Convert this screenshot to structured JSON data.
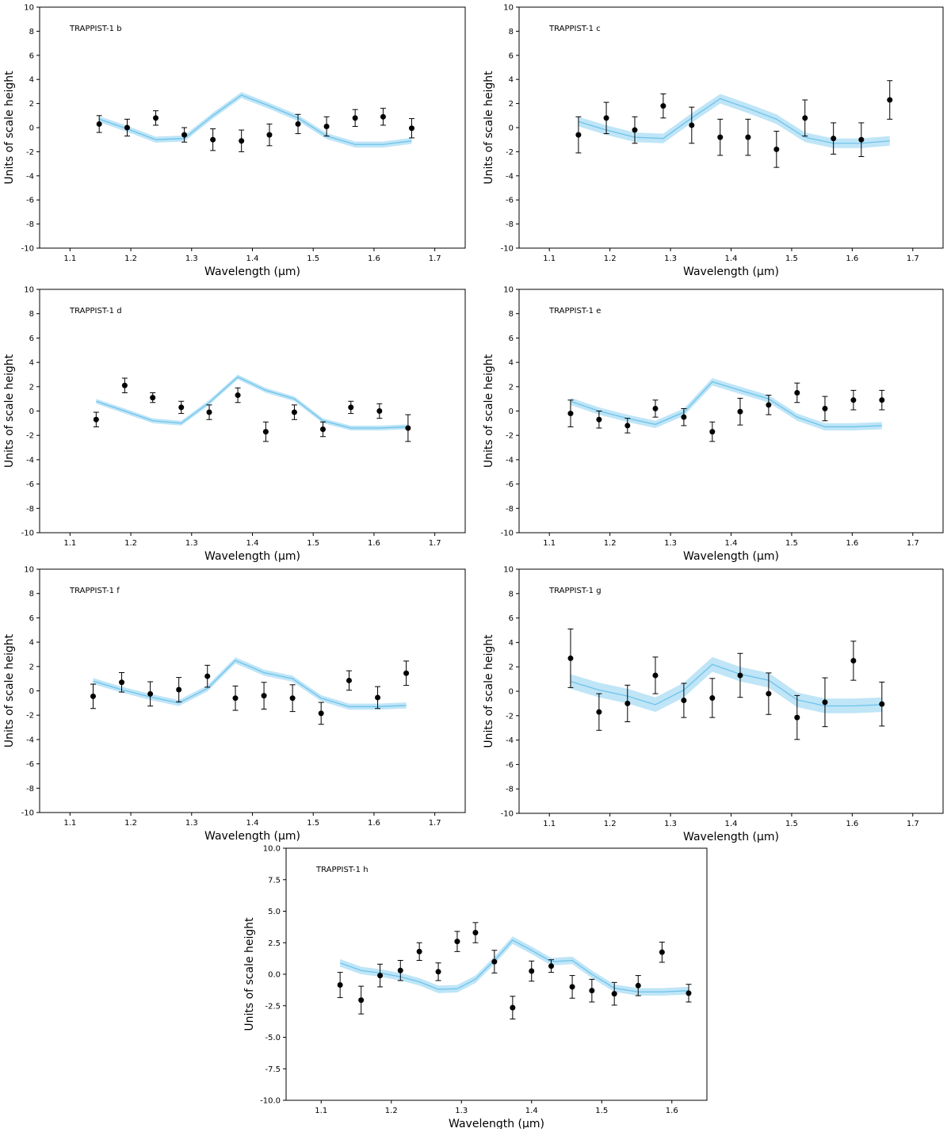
{
  "chart_data": [
    {
      "type": "errorbar",
      "title": "TRAPPIST-1 b",
      "xlabel": "Wavelength (µm)",
      "ylabel": "Units of scale height",
      "xlim": [
        1.05,
        1.75
      ],
      "ylim": [
        -10,
        10
      ],
      "xticks": [
        1.1,
        1.2,
        1.3,
        1.4,
        1.5,
        1.6,
        1.7
      ],
      "yticks": [
        -10,
        -8,
        -6,
        -4,
        -2,
        0,
        2,
        4,
        6,
        8,
        10
      ],
      "color": "#000000",
      "model_color": "#6ec3ea",
      "band_color": "#bfe5f7",
      "x": [
        1.148,
        1.194,
        1.241,
        1.288,
        1.335,
        1.382,
        1.428,
        1.475,
        1.522,
        1.569,
        1.615,
        1.662
      ],
      "values": [
        0.3,
        0.0,
        0.8,
        -0.6,
        -1.0,
        -1.1,
        -0.6,
        0.3,
        0.1,
        0.8,
        0.9,
        -0.05
      ],
      "errors": [
        0.7,
        0.7,
        0.6,
        0.6,
        0.9,
        0.9,
        0.9,
        0.8,
        0.8,
        0.7,
        0.7,
        0.8
      ],
      "model": [
        0.7,
        -0.1,
        -1.0,
        -0.9,
        1.0,
        2.7,
        1.8,
        0.8,
        -0.7,
        -1.4,
        -1.4,
        -1.1
      ],
      "model_band": 0.25
    },
    {
      "type": "errorbar",
      "title": "TRAPPIST-1 c",
      "xlabel": "Wavelength (µm)",
      "ylabel": "Units of scale height",
      "xlim": [
        1.05,
        1.75
      ],
      "ylim": [
        -10,
        10
      ],
      "xticks": [
        1.1,
        1.2,
        1.3,
        1.4,
        1.5,
        1.6,
        1.7
      ],
      "yticks": [
        -10,
        -8,
        -6,
        -4,
        -2,
        0,
        2,
        4,
        6,
        8,
        10
      ],
      "color": "#000000",
      "model_color": "#6ec3ea",
      "band_color": "#bfe5f7",
      "x": [
        1.148,
        1.194,
        1.241,
        1.288,
        1.335,
        1.382,
        1.428,
        1.475,
        1.522,
        1.569,
        1.615,
        1.662
      ],
      "values": [
        -0.6,
        0.8,
        -0.2,
        1.8,
        0.2,
        -0.8,
        -0.8,
        -1.8,
        0.8,
        -0.9,
        -1.0,
        2.3
      ],
      "errors": [
        1.5,
        1.3,
        1.1,
        1.0,
        1.5,
        1.5,
        1.5,
        1.5,
        1.5,
        1.3,
        1.4,
        1.6
      ],
      "model": [
        0.5,
        -0.2,
        -0.8,
        -0.9,
        0.8,
        2.4,
        1.6,
        0.7,
        -0.8,
        -1.3,
        -1.3,
        -1.1
      ],
      "model_band": 0.4
    },
    {
      "type": "errorbar",
      "title": "TRAPPIST-1 d",
      "xlabel": "Wavelength (µm)",
      "ylabel": "Units of scale height",
      "xlim": [
        1.05,
        1.75
      ],
      "ylim": [
        -10,
        10
      ],
      "xticks": [
        1.1,
        1.2,
        1.3,
        1.4,
        1.5,
        1.6,
        1.7
      ],
      "yticks": [
        -10,
        -8,
        -6,
        -4,
        -2,
        0,
        2,
        4,
        6,
        8,
        10
      ],
      "color": "#000000",
      "model_color": "#6ec3ea",
      "band_color": "#bfe5f7",
      "x": [
        1.143,
        1.19,
        1.236,
        1.283,
        1.329,
        1.376,
        1.422,
        1.469,
        1.516,
        1.562,
        1.609,
        1.656
      ],
      "values": [
        -0.7,
        2.1,
        1.1,
        0.3,
        -0.1,
        1.3,
        -1.7,
        -0.1,
        -1.5,
        0.3,
        0.0,
        -1.4
      ],
      "errors": [
        0.6,
        0.6,
        0.4,
        0.5,
        0.6,
        0.6,
        0.8,
        0.6,
        0.6,
        0.5,
        0.6,
        1.1
      ],
      "model": [
        0.8,
        0.0,
        -0.8,
        -1.0,
        0.7,
        2.8,
        1.7,
        1.0,
        -0.8,
        -1.4,
        -1.4,
        -1.3
      ],
      "model_band": 0.2
    },
    {
      "type": "errorbar",
      "title": "TRAPPIST-1 e",
      "xlabel": "Wavelength (µm)",
      "ylabel": "Units of scale height",
      "xlim": [
        1.05,
        1.75
      ],
      "ylim": [
        -10,
        10
      ],
      "xticks": [
        1.1,
        1.2,
        1.3,
        1.4,
        1.5,
        1.6,
        1.7
      ],
      "yticks": [
        -10,
        -8,
        -6,
        -4,
        -2,
        0,
        2,
        4,
        6,
        8,
        10
      ],
      "color": "#000000",
      "model_color": "#6ec3ea",
      "band_color": "#bfe5f7",
      "x": [
        1.135,
        1.182,
        1.229,
        1.275,
        1.322,
        1.369,
        1.415,
        1.462,
        1.509,
        1.555,
        1.602,
        1.649
      ],
      "values": [
        -0.2,
        -0.7,
        -1.2,
        0.2,
        -0.5,
        -1.7,
        -0.05,
        0.5,
        1.5,
        0.2,
        0.9,
        0.9
      ],
      "errors": [
        1.1,
        0.7,
        0.6,
        0.7,
        0.7,
        0.8,
        1.1,
        0.8,
        0.8,
        1.0,
        0.8,
        0.8
      ],
      "model": [
        0.8,
        0.0,
        -0.6,
        -1.1,
        -0.1,
        2.4,
        1.7,
        1.0,
        -0.5,
        -1.3,
        -1.3,
        -1.2
      ],
      "model_band": 0.3
    },
    {
      "type": "errorbar",
      "title": "TRAPPIST-1 f",
      "xlabel": "Wavelength (µm)",
      "ylabel": "Units of scale height",
      "xlim": [
        1.05,
        1.75
      ],
      "ylim": [
        -10,
        10
      ],
      "xticks": [
        1.1,
        1.2,
        1.3,
        1.4,
        1.5,
        1.6,
        1.7
      ],
      "yticks": [
        -10,
        -8,
        -6,
        -4,
        -2,
        0,
        2,
        4,
        6,
        8,
        10
      ],
      "color": "#000000",
      "model_color": "#6ec3ea",
      "band_color": "#bfe5f7",
      "x": [
        1.138,
        1.185,
        1.232,
        1.279,
        1.326,
        1.372,
        1.419,
        1.466,
        1.513,
        1.559,
        1.606,
        1.653
      ],
      "values": [
        -0.45,
        0.7,
        -0.25,
        0.1,
        1.2,
        -0.6,
        -0.4,
        -0.6,
        -1.85,
        0.85,
        -0.55,
        1.45
      ],
      "errors": [
        1.0,
        0.8,
        1.0,
        1.0,
        0.9,
        1.0,
        1.1,
        1.1,
        0.9,
        0.8,
        0.9,
        1.0
      ],
      "model": [
        0.8,
        0.1,
        -0.5,
        -1.0,
        0.2,
        2.5,
        1.5,
        1.0,
        -0.6,
        -1.3,
        -1.3,
        -1.2
      ],
      "model_band": 0.25
    },
    {
      "type": "errorbar",
      "title": "TRAPPIST-1 g",
      "xlabel": "Wavelength (µm)",
      "ylabel": "Units of scale height",
      "xlim": [
        1.05,
        1.75
      ],
      "ylim": [
        -10,
        10
      ],
      "xticks": [
        1.1,
        1.2,
        1.3,
        1.4,
        1.5,
        1.6,
        1.7
      ],
      "yticks": [
        -10,
        -8,
        -6,
        -4,
        -2,
        0,
        2,
        4,
        6,
        8,
        10
      ],
      "color": "#000000",
      "model_color": "#6ec3ea",
      "band_color": "#bfe5f7",
      "x": [
        1.135,
        1.182,
        1.229,
        1.275,
        1.322,
        1.369,
        1.415,
        1.462,
        1.509,
        1.555,
        1.602,
        1.649
      ],
      "values": [
        2.7,
        -1.7,
        -1.0,
        1.3,
        -0.75,
        -0.55,
        1.3,
        -0.2,
        -2.15,
        -0.9,
        2.5,
        -1.05
      ],
      "errors": [
        2.4,
        1.5,
        1.5,
        1.5,
        1.4,
        1.6,
        1.8,
        1.7,
        1.8,
        2.0,
        1.6,
        1.8
      ],
      "model": [
        0.8,
        0.1,
        -0.4,
        -1.1,
        0.1,
        2.2,
        1.4,
        0.9,
        -0.7,
        -1.2,
        -1.2,
        -1.1
      ],
      "model_band": 0.6
    },
    {
      "type": "errorbar",
      "title": "TRAPPIST-1 h",
      "xlabel": "Wavelength (µm)",
      "ylabel": "Units of scale height",
      "xlim": [
        1.05,
        1.65
      ],
      "ylim": [
        -10,
        10
      ],
      "xticks": [
        1.1,
        1.2,
        1.3,
        1.4,
        1.5,
        1.6
      ],
      "yticks": [
        {
          "value": -10,
          "label": "-10.0"
        },
        -7.5,
        {
          "value": -5,
          "label": "-5.0"
        },
        -2.5,
        {
          "value": 0,
          "label": "0.0"
        },
        2.5,
        {
          "value": 5,
          "label": "5.0"
        },
        7.5,
        {
          "value": 10,
          "label": "10.0"
        }
      ],
      "color": "#000000",
      "model_color": "#6ec3ea",
      "band_color": "#bfe5f7",
      "x": [
        1.127,
        1.157,
        1.184,
        1.213,
        1.24,
        1.267,
        1.294,
        1.32,
        1.347,
        1.373,
        1.4,
        1.428,
        1.458,
        1.486,
        1.518,
        1.552,
        1.586,
        1.624
      ],
      "values": [
        -0.85,
        -2.05,
        -0.1,
        0.3,
        1.8,
        0.2,
        2.6,
        3.3,
        1.0,
        -2.65,
        0.25,
        0.65,
        -1.0,
        -1.3,
        -1.55,
        -0.9,
        1.75,
        -1.5
      ],
      "errors": [
        1.0,
        1.1,
        0.9,
        0.8,
        0.7,
        0.7,
        0.8,
        0.8,
        0.9,
        0.9,
        0.8,
        0.5,
        0.9,
        0.9,
        0.9,
        0.8,
        0.8,
        0.7
      ],
      "model": [
        0.9,
        0.3,
        0.1,
        -0.2,
        -0.6,
        -1.2,
        -1.15,
        -0.4,
        1.1,
        2.7,
        1.9,
        1.0,
        1.1,
        0.0,
        -1.1,
        -1.4,
        -1.4,
        -1.3
      ],
      "model_band": 0.3
    }
  ]
}
